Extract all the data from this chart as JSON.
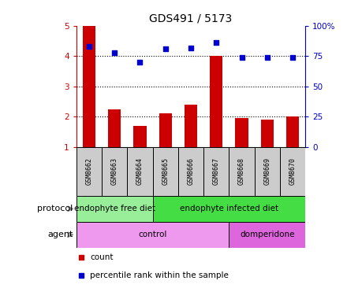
{
  "title": "GDS491 / 5173",
  "samples": [
    "GSM8662",
    "GSM8663",
    "GSM8664",
    "GSM8665",
    "GSM8666",
    "GSM8667",
    "GSM8668",
    "GSM8669",
    "GSM8670"
  ],
  "count_values": [
    5.0,
    2.25,
    1.7,
    2.1,
    2.4,
    4.0,
    1.95,
    1.9,
    2.0
  ],
  "percentile_values": [
    83,
    78,
    70,
    81,
    82,
    86,
    74,
    74,
    74
  ],
  "ylim_left": [
    1,
    5
  ],
  "ylim_right": [
    0,
    100
  ],
  "yticks_left": [
    1,
    2,
    3,
    4,
    5
  ],
  "yticks_right": [
    0,
    25,
    50,
    75,
    100
  ],
  "bar_color": "#cc0000",
  "dot_color": "#0000cc",
  "protocol_groups": [
    {
      "label": "endophyte free diet",
      "start": 0,
      "end": 3,
      "color": "#99ee99"
    },
    {
      "label": "endophyte infected diet",
      "start": 3,
      "end": 9,
      "color": "#44dd44"
    }
  ],
  "agent_groups": [
    {
      "label": "control",
      "start": 0,
      "end": 6,
      "color": "#ee99ee"
    },
    {
      "label": "domperidone",
      "start": 6,
      "end": 9,
      "color": "#dd66dd"
    }
  ],
  "protocol_label": "protocol",
  "agent_label": "agent",
  "legend_count": "count",
  "legend_pct": "percentile rank within the sample",
  "tick_label_color_left": "#cc0000",
  "tick_label_color_right": "#0000cc",
  "bg_color": "#ffffff",
  "sample_bg_color": "#cccccc"
}
